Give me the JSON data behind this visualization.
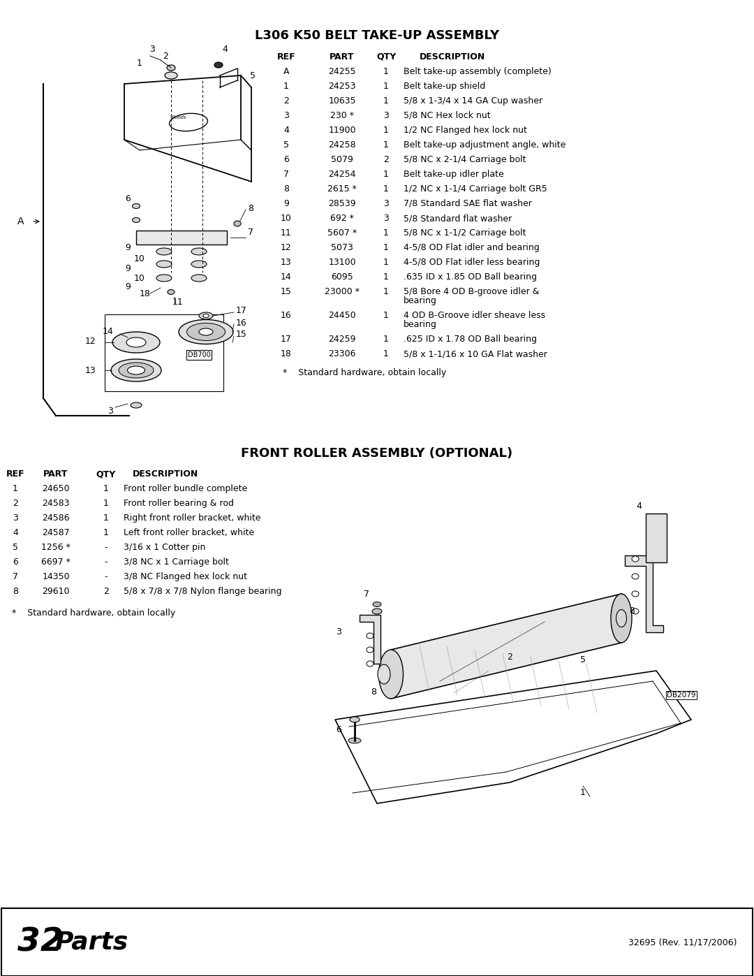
{
  "title1": "L306 K50 BELT TAKE-UP ASSEMBLY",
  "title2": "FRONT ROLLER ASSEMBLY (OPTIONAL)",
  "footer_left_num": "32",
  "footer_left_word": " Parts",
  "footer_right": "32695 (Rev. 11/17/2006)",
  "table1_rows": [
    [
      "A",
      "24255",
      "1",
      "Belt take-up assembly (complete)"
    ],
    [
      "1",
      "24253",
      "1",
      "Belt take-up shield"
    ],
    [
      "2",
      "10635",
      "1",
      "5/8 x 1-3/4 x 14 GA Cup washer"
    ],
    [
      "3",
      "230 *",
      "3",
      "5/8 NC Hex lock nut"
    ],
    [
      "4",
      "11900",
      "1",
      "1/2 NC Flanged hex lock nut"
    ],
    [
      "5",
      "24258",
      "1",
      "Belt take-up adjustment angle, white"
    ],
    [
      "6",
      "5079",
      "2",
      "5/8 NC x 2-1/4 Carriage bolt"
    ],
    [
      "7",
      "24254",
      "1",
      "Belt take-up idler plate"
    ],
    [
      "8",
      "2615 *",
      "1",
      "1/2 NC x 1-1/4 Carriage bolt GR5"
    ],
    [
      "9",
      "28539",
      "3",
      "7/8 Standard SAE flat washer"
    ],
    [
      "10",
      "692 *",
      "3",
      "5/8 Standard flat washer"
    ],
    [
      "11",
      "5607 *",
      "1",
      "5/8 NC x 1-1/2 Carriage bolt"
    ],
    [
      "12",
      "5073",
      "1",
      "4-5/8 OD Flat idler and bearing"
    ],
    [
      "13",
      "13100",
      "1",
      "4-5/8 OD Flat idler less bearing"
    ],
    [
      "14",
      "6095",
      "1",
      ".635 ID x 1.85 OD Ball bearing"
    ],
    [
      "15",
      "23000 *",
      "1",
      "5/8 Bore 4 OD B-groove idler &\nbearing"
    ],
    [
      "16",
      "24450",
      "1",
      "4 OD B-Groove idler sheave less\nbearing"
    ],
    [
      "17",
      "24259",
      "1",
      ".625 ID x 1.78 OD Ball bearing"
    ],
    [
      "18",
      "23306",
      "1",
      "5/8 x 1-1/16 x 10 GA Flat washer"
    ]
  ],
  "table1_footnote": "*    Standard hardware, obtain locally",
  "table2_rows": [
    [
      "1",
      "24650",
      "1",
      "Front roller bundle complete"
    ],
    [
      "2",
      "24583",
      "1",
      "Front roller bearing & rod"
    ],
    [
      "3",
      "24586",
      "1",
      "Right front roller bracket, white"
    ],
    [
      "4",
      "24587",
      "1",
      "Left front roller bracket, white"
    ],
    [
      "5",
      "1256 *",
      "-",
      "3/16 x 1 Cotter pin"
    ],
    [
      "6",
      "6697 *",
      "-",
      "3/8 NC x 1 Carriage bolt"
    ],
    [
      "7",
      "14350",
      "-",
      "3/8 NC Flanged hex lock nut"
    ],
    [
      "8",
      "29610",
      "2",
      "5/8 x 7/8 x 7/8 Nylon flange bearing"
    ]
  ],
  "table2_footnote": "*    Standard hardware, obtain locally",
  "bg_color": "#ffffff"
}
